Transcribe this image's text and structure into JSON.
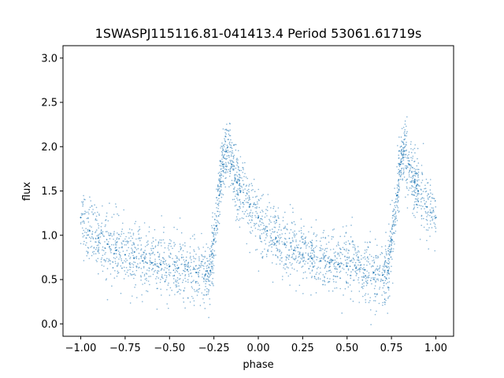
{
  "chart_data": {
    "type": "scatter",
    "title": "1SWASPJ115116.81-041413.4 Period 53061.61719s",
    "xlabel": "phase",
    "ylabel": "flux",
    "xlim": [
      -1.1,
      1.1
    ],
    "ylim": [
      -0.14,
      3.14
    ],
    "x_ticks": [
      -1.0,
      -0.75,
      -0.5,
      -0.25,
      0.0,
      0.25,
      0.5,
      0.75,
      1.0
    ],
    "x_tick_labels": [
      "−1.00",
      "−0.75",
      "−0.50",
      "−0.25",
      "0.00",
      "0.25",
      "0.50",
      "0.75",
      "1.00"
    ],
    "y_ticks": [
      0.0,
      0.5,
      1.0,
      1.5,
      2.0,
      2.5,
      3.0
    ],
    "y_tick_labels": [
      "0.0",
      "0.5",
      "1.0",
      "1.5",
      "2.0",
      "2.5",
      "3.0"
    ],
    "grid": false,
    "marker_color": "#1f77b4",
    "series": [
      {
        "points_note_phase_flux_pairs": true,
        "x": [
          -1.0,
          -0.95,
          -0.9,
          -0.85,
          -0.8,
          -0.75,
          -0.7,
          -0.65,
          -0.6,
          -0.55,
          -0.5,
          -0.45,
          -0.4,
          -0.35,
          -0.3,
          -0.27,
          -0.25,
          -0.22,
          -0.2,
          -0.18,
          -0.15,
          -0.12,
          -0.1,
          -0.05,
          0.0,
          0.05,
          0.1,
          0.15,
          0.2,
          0.25,
          0.3,
          0.35,
          0.4,
          0.45,
          0.5,
          0.55,
          0.6,
          0.65,
          0.7,
          0.73,
          0.75,
          0.78,
          0.8,
          0.82,
          0.85,
          0.88,
          0.9,
          0.95,
          1.0
        ],
        "y": [
          1.2,
          1.05,
          0.97,
          0.9,
          0.83,
          0.78,
          0.74,
          0.71,
          0.69,
          0.67,
          0.65,
          0.63,
          0.61,
          0.58,
          0.55,
          0.6,
          0.95,
          1.45,
          1.8,
          1.95,
          1.8,
          1.6,
          1.5,
          1.32,
          1.2,
          1.05,
          0.97,
          0.9,
          0.83,
          0.78,
          0.74,
          0.71,
          0.69,
          0.67,
          0.65,
          0.63,
          0.61,
          0.58,
          0.55,
          0.6,
          0.95,
          1.45,
          1.8,
          1.95,
          1.8,
          1.6,
          1.5,
          1.32,
          1.2
        ]
      }
    ]
  }
}
